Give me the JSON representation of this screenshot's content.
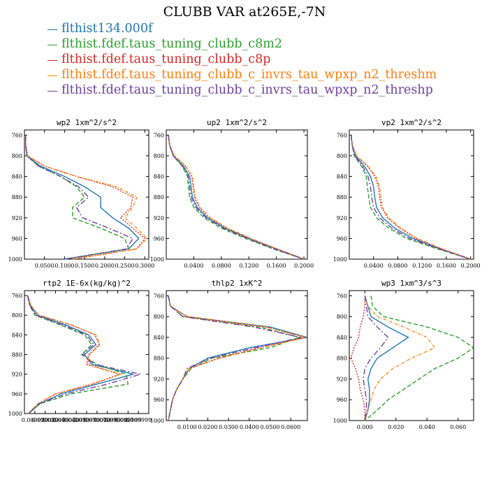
{
  "title": "CLUBB VAR at265E,-7N",
  "legend": [
    {
      "name": "flthist134.000f",
      "color": "#1f77b4"
    },
    {
      "name": "flthist.fdef.taus_tuning_clubb_c8m2",
      "color": "#2ca02c"
    },
    {
      "name": "flthist.fdef.taus_tuning_clubb_c8p",
      "color": "#d62728"
    },
    {
      "name": "flthist.fdef.taus_tuning_clubb_c_invrs_tau_wpxp_n2_threshm",
      "color": "#ff7f0e"
    },
    {
      "name": "flthist.fdef.taus_tuning_clubb_c_invrs_tau_wpxp_n2_threshp",
      "color": "#7040a0"
    }
  ],
  "chart_data": [
    {
      "type": "line",
      "title": "wp2   1xm^2/s^2",
      "xlim": [
        0,
        0.31
      ],
      "ylim": [
        750,
        1000
      ],
      "xticks": [
        0.05,
        0.1,
        0.15,
        0.2,
        0.25,
        0.3
      ],
      "xticklabels": [
        "0.0500",
        "0.1000",
        "0.1500",
        "0.2000",
        "0.2500",
        "0.3000"
      ],
      "yticks": [
        760,
        800,
        840,
        880,
        920,
        960,
        1000
      ],
      "y": [
        760,
        780,
        800,
        820,
        840,
        860,
        880,
        900,
        920,
        940,
        960,
        980,
        1000
      ],
      "series": [
        {
          "name": "flthist134.000f",
          "values": [
            0.003,
            0.003,
            0.006,
            0.04,
            0.1,
            0.15,
            0.19,
            0.19,
            0.22,
            0.26,
            0.285,
            0.26,
            0.1
          ]
        },
        {
          "name": "flthist.fdef.taus_tuning_clubb_c8m2",
          "values": [
            0.003,
            0.003,
            0.006,
            0.035,
            0.09,
            0.13,
            0.15,
            0.12,
            0.12,
            0.19,
            0.25,
            0.26,
            0.1
          ]
        },
        {
          "name": "flthist.fdef.taus_tuning_clubb_c8p",
          "values": [
            0.003,
            0.003,
            0.008,
            0.05,
            0.13,
            0.22,
            0.27,
            0.265,
            0.24,
            0.27,
            0.3,
            0.28,
            0.12
          ]
        },
        {
          "name": "flthist.fdef.taus_tuning_clubb_c_invrs_tau_wpxp_n2_threshm",
          "values": [
            0.003,
            0.003,
            0.008,
            0.05,
            0.13,
            0.23,
            0.28,
            0.27,
            0.25,
            0.28,
            0.305,
            0.28,
            0.12
          ]
        },
        {
          "name": "flthist.fdef.taus_tuning_clubb_c_invrs_tau_wpxp_n2_threshp",
          "values": [
            0.003,
            0.003,
            0.006,
            0.035,
            0.09,
            0.135,
            0.16,
            0.13,
            0.145,
            0.21,
            0.27,
            0.255,
            0.1
          ]
        }
      ]
    },
    {
      "type": "line",
      "title": "up2   1xm^2/s^2",
      "xlim": [
        0,
        0.205
      ],
      "ylim": [
        750,
        1000
      ],
      "xticks": [
        0.04,
        0.08,
        0.12,
        0.16,
        0.2
      ],
      "xticklabels": [
        "0.0400",
        "0.0800",
        "0.1200",
        "0.1600",
        "0.2000"
      ],
      "yticks": [
        760,
        800,
        840,
        880,
        920,
        960,
        1000
      ],
      "y": [
        760,
        780,
        800,
        820,
        840,
        860,
        880,
        900,
        920,
        940,
        960,
        980,
        1000
      ],
      "series": [
        {
          "name": "flthist134.000f",
          "values": [
            0.003,
            0.005,
            0.01,
            0.025,
            0.034,
            0.036,
            0.038,
            0.045,
            0.06,
            0.085,
            0.12,
            0.16,
            0.2
          ]
        },
        {
          "name": "flthist.fdef.taus_tuning_clubb_c8m2",
          "values": [
            0.003,
            0.005,
            0.01,
            0.023,
            0.031,
            0.032,
            0.034,
            0.04,
            0.055,
            0.08,
            0.115,
            0.155,
            0.2
          ]
        },
        {
          "name": "flthist.fdef.taus_tuning_clubb_c8p",
          "values": [
            0.003,
            0.005,
            0.012,
            0.028,
            0.037,
            0.039,
            0.041,
            0.048,
            0.063,
            0.088,
            0.122,
            0.16,
            0.2
          ]
        },
        {
          "name": "flthist.fdef.taus_tuning_clubb_c_invrs_tau_wpxp_n2_threshm",
          "values": [
            0.003,
            0.005,
            0.012,
            0.028,
            0.038,
            0.04,
            0.042,
            0.049,
            0.064,
            0.089,
            0.123,
            0.161,
            0.2
          ]
        },
        {
          "name": "flthist.fdef.taus_tuning_clubb_c_invrs_tau_wpxp_n2_threshp",
          "values": [
            0.003,
            0.005,
            0.01,
            0.024,
            0.032,
            0.034,
            0.036,
            0.043,
            0.058,
            0.083,
            0.118,
            0.157,
            0.2
          ]
        }
      ]
    },
    {
      "type": "line",
      "title": "vp2   1xm^2/s^2",
      "xlim": [
        0,
        0.205
      ],
      "ylim": [
        750,
        1000
      ],
      "xticks": [
        0.04,
        0.08,
        0.12,
        0.16,
        0.2
      ],
      "xticklabels": [
        "0.0400",
        "0.0800",
        "0.1200",
        "0.1600",
        "0.2000"
      ],
      "yticks": [
        760,
        800,
        840,
        880,
        920,
        960,
        1000
      ],
      "y": [
        760,
        780,
        800,
        820,
        840,
        860,
        880,
        900,
        920,
        940,
        960,
        980,
        1000
      ],
      "series": [
        {
          "name": "flthist134.000f",
          "values": [
            0.003,
            0.005,
            0.01,
            0.025,
            0.035,
            0.04,
            0.042,
            0.045,
            0.055,
            0.075,
            0.105,
            0.15,
            0.2
          ]
        },
        {
          "name": "flthist.fdef.taus_tuning_clubb_c8m2",
          "values": [
            0.003,
            0.005,
            0.008,
            0.02,
            0.028,
            0.03,
            0.032,
            0.035,
            0.045,
            0.065,
            0.095,
            0.145,
            0.2
          ]
        },
        {
          "name": "flthist.fdef.taus_tuning_clubb_c8p",
          "values": [
            0.003,
            0.005,
            0.012,
            0.03,
            0.042,
            0.048,
            0.05,
            0.053,
            0.063,
            0.083,
            0.11,
            0.152,
            0.2
          ]
        },
        {
          "name": "flthist.fdef.taus_tuning_clubb_c_invrs_tau_wpxp_n2_threshm",
          "values": [
            0.003,
            0.005,
            0.012,
            0.031,
            0.044,
            0.05,
            0.052,
            0.055,
            0.065,
            0.085,
            0.112,
            0.153,
            0.2
          ]
        },
        {
          "name": "flthist.fdef.taus_tuning_clubb_c_invrs_tau_wpxp_n2_threshp",
          "values": [
            0.003,
            0.005,
            0.009,
            0.022,
            0.031,
            0.035,
            0.037,
            0.04,
            0.05,
            0.07,
            0.1,
            0.148,
            0.2
          ]
        }
      ]
    },
    {
      "type": "line",
      "title": "rtp2   1E-6x(kg/kg)^2",
      "xlim": [
        0,
        0.12
      ],
      "ylim": [
        750,
        1000
      ],
      "xticks": [
        0.01,
        0.02,
        0.03,
        0.04,
        0.05,
        0.06,
        0.07,
        0.08,
        0.09,
        0.1,
        0.11
      ],
      "xticklabels": [
        "0.009999",
        "0.020000",
        "0.029999",
        "0.040000",
        "0.049999",
        "0.059999",
        "0.070000",
        "0.079999",
        "0.090000",
        "0.099999",
        "0.109999"
      ],
      "yticks": [
        760,
        800,
        840,
        880,
        920,
        960,
        1000
      ],
      "y": [
        760,
        780,
        800,
        820,
        840,
        860,
        880,
        900,
        920,
        940,
        960,
        980,
        1000
      ],
      "series": [
        {
          "name": "flthist134.000f",
          "values": [
            0.003,
            0.006,
            0.012,
            0.04,
            0.062,
            0.069,
            0.058,
            0.065,
            0.105,
            0.07,
            0.035,
            0.015,
            0.004
          ]
        },
        {
          "name": "flthist.fdef.taus_tuning_clubb_c8m2",
          "values": [
            0.003,
            0.005,
            0.01,
            0.035,
            0.058,
            0.065,
            0.055,
            0.07,
            0.098,
            0.1,
            0.045,
            0.015,
            0.004
          ]
        },
        {
          "name": "flthist.fdef.taus_tuning_clubb_c8p",
          "values": [
            0.003,
            0.006,
            0.014,
            0.045,
            0.068,
            0.072,
            0.062,
            0.06,
            0.092,
            0.065,
            0.03,
            0.013,
            0.004
          ]
        },
        {
          "name": "flthist.fdef.taus_tuning_clubb_c_invrs_tau_wpxp_n2_threshm",
          "values": [
            0.003,
            0.006,
            0.014,
            0.046,
            0.069,
            0.073,
            0.063,
            0.061,
            0.093,
            0.066,
            0.03,
            0.013,
            0.004
          ]
        },
        {
          "name": "flthist.fdef.taus_tuning_clubb_c_invrs_tau_wpxp_n2_threshp",
          "values": [
            0.003,
            0.005,
            0.011,
            0.037,
            0.06,
            0.067,
            0.056,
            0.068,
            0.112,
            0.08,
            0.04,
            0.014,
            0.004
          ]
        }
      ]
    },
    {
      "type": "line",
      "title": "thlp2   1xK^2",
      "xlim": [
        0,
        0.068
      ],
      "ylim": [
        750,
        1000
      ],
      "xticks": [
        0.01,
        0.02,
        0.03,
        0.04,
        0.05,
        0.06
      ],
      "xticklabels": [
        "0.0100",
        "0.0200",
        "0.0300",
        "0.0400",
        "0.0500",
        "0.0600"
      ],
      "yticks": [
        760,
        800,
        840,
        880,
        920,
        960,
        1000
      ],
      "y": [
        760,
        780,
        800,
        820,
        840,
        860,
        880,
        900,
        920,
        940,
        960,
        980,
        1000
      ],
      "series": [
        {
          "name": "flthist134.000f",
          "values": [
            0.001,
            0.002,
            0.01,
            0.05,
            0.068,
            0.04,
            0.02,
            0.011,
            0.008,
            0.005,
            0.003,
            0.002,
            0.001
          ]
        },
        {
          "name": "flthist.fdef.taus_tuning_clubb_c8m2",
          "values": [
            0.001,
            0.002,
            0.008,
            0.045,
            0.064,
            0.05,
            0.022,
            0.012,
            0.008,
            0.005,
            0.003,
            0.002,
            0.001
          ]
        },
        {
          "name": "flthist.fdef.taus_tuning_clubb_c8p",
          "values": [
            0.001,
            0.002,
            0.01,
            0.048,
            0.067,
            0.045,
            0.025,
            0.011,
            0.008,
            0.005,
            0.003,
            0.002,
            0.001
          ]
        },
        {
          "name": "flthist.fdef.taus_tuning_clubb_c_invrs_tau_wpxp_n2_threshm",
          "values": [
            0.001,
            0.002,
            0.01,
            0.048,
            0.067,
            0.046,
            0.026,
            0.011,
            0.008,
            0.005,
            0.003,
            0.002,
            0.001
          ]
        },
        {
          "name": "flthist.fdef.taus_tuning_clubb_c_invrs_tau_wpxp_n2_threshp",
          "values": [
            0.001,
            0.002,
            0.008,
            0.042,
            0.065,
            0.043,
            0.021,
            0.01,
            0.008,
            0.005,
            0.003,
            0.002,
            0.001
          ]
        }
      ]
    },
    {
      "type": "line",
      "title": "wp3   1xm^3/s^3",
      "xlim": [
        -0.01,
        0.07
      ],
      "ylim": [
        750,
        1000
      ],
      "xticks": [
        0,
        0.02,
        0.04,
        0.06
      ],
      "xticklabels": [
        "0.000",
        "0.020",
        "0.040",
        "0.060"
      ],
      "yticks": [
        760,
        800,
        840,
        880,
        920,
        960,
        1000
      ],
      "y": [
        760,
        780,
        800,
        820,
        840,
        860,
        880,
        900,
        920,
        940,
        960,
        980,
        1000
      ],
      "series": [
        {
          "name": "flthist134.000f",
          "values": [
            0,
            0.002,
            0.004,
            0.015,
            0.028,
            0.018,
            0.008,
            0.004,
            0.002,
            0.003,
            0.003,
            0.002,
            0
          ]
        },
        {
          "name": "flthist.fdef.taus_tuning_clubb_c8m2",
          "values": [
            0.004,
            0.005,
            0.012,
            0.04,
            0.06,
            0.07,
            0.06,
            0.045,
            0.035,
            0.025,
            0.015,
            0.008,
            0
          ]
        },
        {
          "name": "flthist.fdef.taus_tuning_clubb_c8p",
          "values": [
            0,
            0,
            -0.001,
            -0.003,
            -0.004,
            -0.007,
            -0.009,
            -0.006,
            -0.004,
            -0.003,
            -0.001,
            0,
            0
          ]
        },
        {
          "name": "flthist.fdef.taus_tuning_clubb_c_invrs_tau_wpxp_n2_threshm",
          "values": [
            0,
            0.002,
            0.008,
            0.025,
            0.04,
            0.045,
            0.03,
            0.018,
            0.01,
            0.006,
            0.004,
            0.002,
            0
          ]
        },
        {
          "name": "flthist.fdef.taus_tuning_clubb_c_invrs_tau_wpxp_n2_threshp",
          "values": [
            0,
            0.001,
            0.002,
            0.008,
            0.015,
            0.01,
            0.004,
            0,
            -0.001,
            0,
            0.001,
            0.001,
            0
          ]
        }
      ]
    }
  ]
}
